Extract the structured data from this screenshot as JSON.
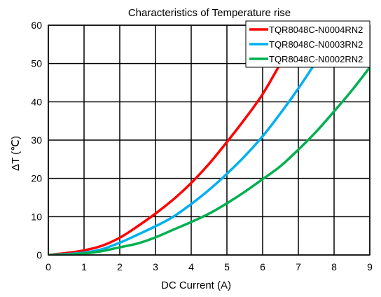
{
  "chart_data": {
    "type": "line",
    "title": "Characteristics of Temperature  rise",
    "xlabel": "DC Current (A)",
    "ylabel": "ΔT (℃)",
    "xlim": [
      0,
      9
    ],
    "ylim": [
      0,
      60
    ],
    "x_ticks": [
      "0",
      "1",
      "2",
      "3",
      "4",
      "5",
      "6",
      "7",
      "8",
      "9"
    ],
    "y_ticks": [
      "0",
      "10",
      "20",
      "30",
      "40",
      "50",
      "60"
    ],
    "grid": true,
    "legend_position": "top-right",
    "series": [
      {
        "name": "TQR8048C-N0004RN2",
        "color": "#ff0000",
        "x": [
          0,
          0.5,
          1,
          1.5,
          2,
          2.5,
          3,
          3.5,
          4,
          4.5,
          5,
          5.5,
          6,
          6.5,
          6.7
        ],
        "y": [
          0,
          0.5,
          1.2,
          2.4,
          4.5,
          7.5,
          10.8,
          14.5,
          18.8,
          23.8,
          29.5,
          35.5,
          42,
          50,
          53
        ]
      },
      {
        "name": "TQR8048C-N0003RN2",
        "color": "#00b0f0",
        "x": [
          0,
          0.5,
          1,
          1.5,
          2,
          2.5,
          3,
          3.5,
          4,
          4.5,
          5,
          5.5,
          6,
          6.5,
          7,
          7.5,
          7.8
        ],
        "y": [
          0,
          0.2,
          0.6,
          1.5,
          3.2,
          5.3,
          7.5,
          10,
          13.3,
          17,
          21.2,
          25.8,
          31,
          37,
          43.5,
          50.5,
          55
        ]
      },
      {
        "name": "TQR8048C-N0002RN2",
        "color": "#00b050",
        "x": [
          0,
          0.5,
          1,
          1.5,
          2,
          2.5,
          3,
          3.5,
          4,
          4.5,
          5,
          5.5,
          6,
          6.5,
          7,
          7.5,
          8,
          8.5,
          9
        ],
        "y": [
          0,
          0.1,
          0.4,
          1,
          2,
          3,
          4.6,
          6.6,
          8.6,
          10.8,
          13.5,
          16.5,
          19.8,
          23.2,
          27.5,
          32.2,
          37.5,
          43,
          49
        ]
      }
    ]
  }
}
